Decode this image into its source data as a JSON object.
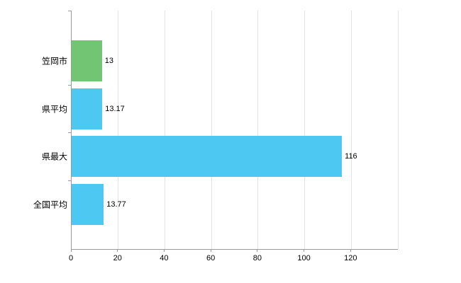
{
  "chart_data": {
    "type": "bar",
    "orientation": "horizontal",
    "title": "",
    "categories": [
      "笠岡市",
      "県平均",
      "県最大",
      "全国平均"
    ],
    "values": [
      13,
      13.17,
      116,
      13.77
    ],
    "value_labels": [
      "13",
      "13.17",
      "116",
      "13.77"
    ],
    "series": [
      {
        "name": "値",
        "values": [
          13,
          13.17,
          116,
          13.77
        ]
      }
    ],
    "bar_colors": [
      "#72c572",
      "#4cc8f2",
      "#4cc8f2",
      "#4cc8f2"
    ],
    "xlim": [
      0,
      140
    ],
    "x_tick_values": [
      0,
      20,
      40,
      60,
      80,
      100,
      120
    ],
    "x_tick_labels": [
      "0",
      "20",
      "40",
      "60",
      "80",
      "100",
      "120"
    ],
    "grid_values": [
      20,
      40,
      60,
      80,
      100,
      120,
      140
    ],
    "grid": true,
    "legend_position": "none",
    "colors": {
      "grid": "#e3e3e3",
      "axis": "#9a9a9a",
      "text": "#000000",
      "background": "#ffffff"
    }
  }
}
